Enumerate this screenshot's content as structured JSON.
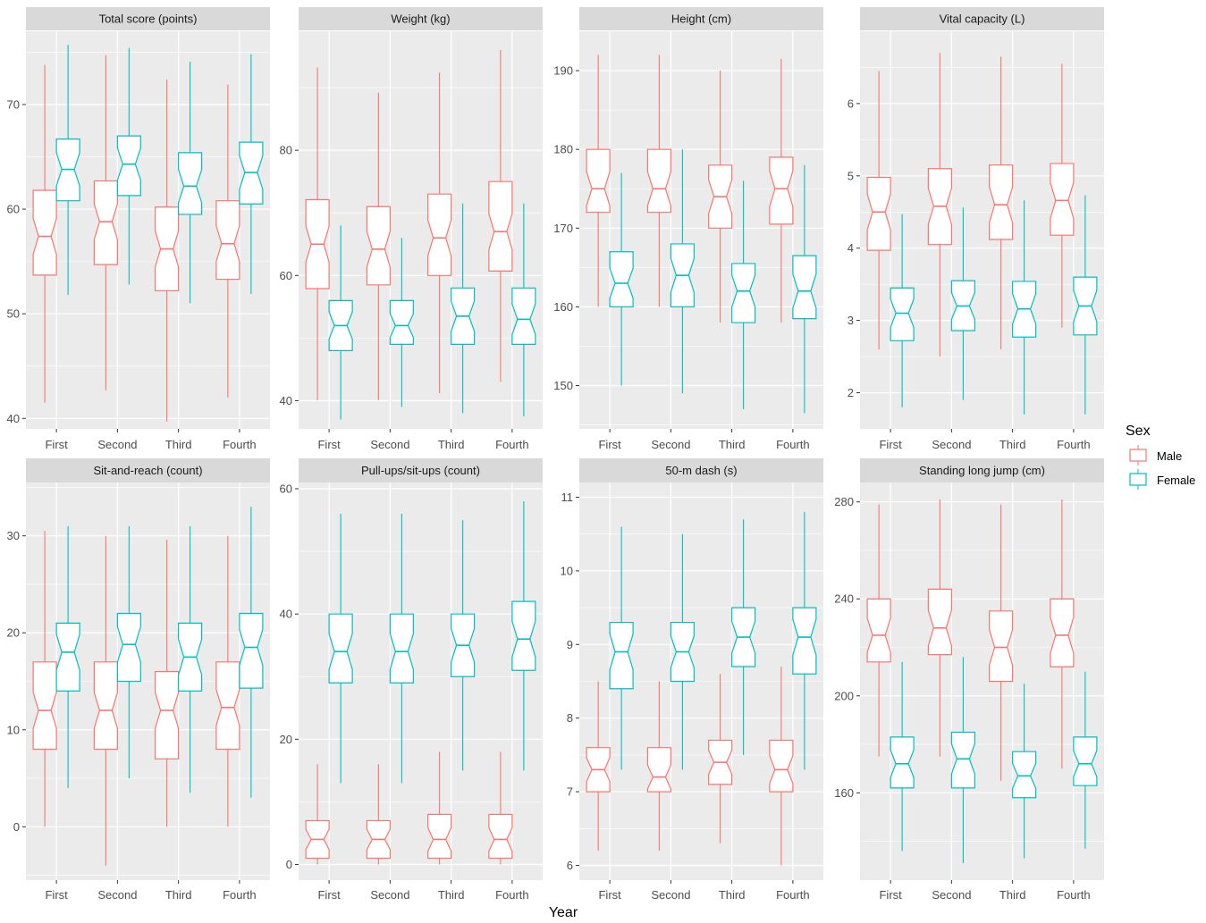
{
  "colors": {
    "male": "#F8766D",
    "female": "#00BFC4",
    "panel_bg": "#EBEBEB",
    "strip_bg": "#D9D9D9",
    "grid": "#FFFFFF"
  },
  "xlabel": "Year",
  "legend": {
    "title": "Sex",
    "entries": [
      "Male",
      "Female"
    ]
  },
  "chart_data": [
    {
      "type": "boxplot",
      "title": "Total score (points)",
      "categories": [
        "First",
        "Second",
        "Third",
        "Fourth"
      ],
      "ylim": [
        39,
        77
      ],
      "yticks": [
        40,
        50,
        60,
        70
      ],
      "series": [
        {
          "name": "Male",
          "boxes": [
            {
              "min": 41.5,
              "q1": 53.7,
              "median": 57.4,
              "q3": 61.8,
              "max": 73.8
            },
            {
              "min": 42.7,
              "q1": 54.7,
              "median": 58.8,
              "q3": 62.7,
              "max": 74.7
            },
            {
              "min": 39.7,
              "q1": 52.2,
              "median": 56.2,
              "q3": 60.2,
              "max": 72.4
            },
            {
              "min": 42.0,
              "q1": 53.3,
              "median": 56.7,
              "q3": 60.8,
              "max": 71.9
            }
          ]
        },
        {
          "name": "Female",
          "boxes": [
            {
              "min": 51.8,
              "q1": 60.8,
              "median": 63.8,
              "q3": 66.7,
              "max": 75.7
            },
            {
              "min": 52.8,
              "q1": 61.3,
              "median": 64.3,
              "q3": 67.0,
              "max": 75.4
            },
            {
              "min": 51.0,
              "q1": 59.5,
              "median": 62.2,
              "q3": 65.4,
              "max": 74.1
            },
            {
              "min": 51.9,
              "q1": 60.5,
              "median": 63.5,
              "q3": 66.4,
              "max": 74.8
            }
          ]
        }
      ]
    },
    {
      "type": "boxplot",
      "title": "Weight (kg)",
      "categories": [
        "First",
        "Second",
        "Third",
        "Fourth"
      ],
      "ylim": [
        35.5,
        99
      ],
      "yticks": [
        40,
        60,
        80
      ],
      "series": [
        {
          "name": "Male",
          "boxes": [
            {
              "min": 40.1,
              "q1": 57.9,
              "median": 65.0,
              "q3": 72.1,
              "max": 93.2
            },
            {
              "min": 40.1,
              "q1": 58.5,
              "median": 64.2,
              "q3": 71.0,
              "max": 89.2
            },
            {
              "min": 41.2,
              "q1": 60.0,
              "median": 66.0,
              "q3": 73.0,
              "max": 92.4
            },
            {
              "min": 43.0,
              "q1": 60.7,
              "median": 67.0,
              "q3": 75.0,
              "max": 96.0
            }
          ]
        },
        {
          "name": "Female",
          "boxes": [
            {
              "min": 37.0,
              "q1": 48.0,
              "median": 52.0,
              "q3": 56.0,
              "max": 68.0
            },
            {
              "min": 39.0,
              "q1": 49.0,
              "median": 52.0,
              "q3": 56.0,
              "max": 66.0
            },
            {
              "min": 38.0,
              "q1": 49.0,
              "median": 53.5,
              "q3": 58.0,
              "max": 71.5
            },
            {
              "min": 37.5,
              "q1": 49.0,
              "median": 53.0,
              "q3": 58.0,
              "max": 71.5
            }
          ]
        }
      ]
    },
    {
      "type": "boxplot",
      "title": "Height (cm)",
      "categories": [
        "First",
        "Second",
        "Third",
        "Fourth"
      ],
      "ylim": [
        144.5,
        195
      ],
      "yticks": [
        150,
        160,
        170,
        180,
        190
      ],
      "series": [
        {
          "name": "Male",
          "boxes": [
            {
              "min": 160.0,
              "q1": 172.0,
              "median": 175.0,
              "q3": 180.0,
              "max": 192.0
            },
            {
              "min": 160.0,
              "q1": 172.0,
              "median": 175.0,
              "q3": 180.0,
              "max": 192.0
            },
            {
              "min": 158.0,
              "q1": 170.0,
              "median": 174.0,
              "q3": 178.0,
              "max": 190.0
            },
            {
              "min": 158.0,
              "q1": 170.5,
              "median": 175.0,
              "q3": 179.0,
              "max": 191.5
            }
          ]
        },
        {
          "name": "Female",
          "boxes": [
            {
              "min": 150.0,
              "q1": 160.0,
              "median": 163.0,
              "q3": 167.0,
              "max": 177.0
            },
            {
              "min": 149.0,
              "q1": 160.0,
              "median": 164.0,
              "q3": 168.0,
              "max": 180.0
            },
            {
              "min": 147.0,
              "q1": 158.0,
              "median": 162.0,
              "q3": 165.5,
              "max": 176.0
            },
            {
              "min": 146.5,
              "q1": 158.5,
              "median": 162.0,
              "q3": 166.5,
              "max": 178.0
            }
          ]
        }
      ]
    },
    {
      "type": "boxplot",
      "title": "Vital capacity (L)",
      "categories": [
        "First",
        "Second",
        "Third",
        "Fourth"
      ],
      "ylim": [
        1.5,
        7.0
      ],
      "yticks": [
        2,
        3,
        4,
        5,
        6
      ],
      "series": [
        {
          "name": "Male",
          "boxes": [
            {
              "min": 2.6,
              "q1": 3.97,
              "median": 4.5,
              "q3": 4.98,
              "max": 6.45
            },
            {
              "min": 2.5,
              "q1": 4.05,
              "median": 4.58,
              "q3": 5.1,
              "max": 6.7
            },
            {
              "min": 2.6,
              "q1": 4.12,
              "median": 4.6,
              "q3": 5.15,
              "max": 6.65
            },
            {
              "min": 2.9,
              "q1": 4.18,
              "median": 4.66,
              "q3": 5.17,
              "max": 6.55
            }
          ]
        },
        {
          "name": "Female",
          "boxes": [
            {
              "min": 1.8,
              "q1": 2.72,
              "median": 3.1,
              "q3": 3.45,
              "max": 4.47
            },
            {
              "min": 1.9,
              "q1": 2.86,
              "median": 3.2,
              "q3": 3.55,
              "max": 4.56
            },
            {
              "min": 1.7,
              "q1": 2.77,
              "median": 3.16,
              "q3": 3.54,
              "max": 4.66
            },
            {
              "min": 1.7,
              "q1": 2.8,
              "median": 3.2,
              "q3": 3.6,
              "max": 4.73
            }
          ]
        }
      ]
    },
    {
      "type": "boxplot",
      "title": "Sit-and-reach (count)",
      "categories": [
        "First",
        "Second",
        "Third",
        "Fourth"
      ],
      "ylim": [
        -5.5,
        35.5
      ],
      "yticks": [
        0,
        10,
        20,
        30
      ],
      "series": [
        {
          "name": "Male",
          "boxes": [
            {
              "min": 0.0,
              "q1": 8.0,
              "median": 12.0,
              "q3": 17.0,
              "max": 30.5
            },
            {
              "min": -4.0,
              "q1": 8.0,
              "median": 12.0,
              "q3": 17.0,
              "max": 30.0
            },
            {
              "min": 0.0,
              "q1": 7.0,
              "median": 12.0,
              "q3": 16.0,
              "max": 29.6
            },
            {
              "min": 0.0,
              "q1": 8.0,
              "median": 12.3,
              "q3": 17.0,
              "max": 30.0
            }
          ]
        },
        {
          "name": "Female",
          "boxes": [
            {
              "min": 4.0,
              "q1": 14.0,
              "median": 18.0,
              "q3": 21.0,
              "max": 31.0
            },
            {
              "min": 5.0,
              "q1": 15.0,
              "median": 18.8,
              "q3": 22.0,
              "max": 31.0
            },
            {
              "min": 3.5,
              "q1": 14.0,
              "median": 17.5,
              "q3": 21.0,
              "max": 31.0
            },
            {
              "min": 3.0,
              "q1": 14.3,
              "median": 18.5,
              "q3": 22.0,
              "max": 33.0
            }
          ]
        }
      ]
    },
    {
      "type": "boxplot",
      "title": "Pull-ups/sit-ups (count)",
      "categories": [
        "First",
        "Second",
        "Third",
        "Fourth"
      ],
      "ylim": [
        -2.5,
        61
      ],
      "yticks": [
        0,
        20,
        40,
        60
      ],
      "series": [
        {
          "name": "Male",
          "boxes": [
            {
              "min": 0.0,
              "q1": 1.0,
              "median": 4.0,
              "q3": 7.0,
              "max": 16.0
            },
            {
              "min": 0.0,
              "q1": 1.0,
              "median": 4.0,
              "q3": 7.0,
              "max": 16.0
            },
            {
              "min": 0.0,
              "q1": 1.0,
              "median": 4.0,
              "q3": 8.0,
              "max": 18.0
            },
            {
              "min": 0.0,
              "q1": 1.0,
              "median": 4.0,
              "q3": 8.0,
              "max": 18.0
            }
          ]
        },
        {
          "name": "Female",
          "boxes": [
            {
              "min": 13.0,
              "q1": 29.0,
              "median": 34.0,
              "q3": 40.0,
              "max": 56.0
            },
            {
              "min": 13.0,
              "q1": 29.0,
              "median": 34.0,
              "q3": 40.0,
              "max": 56.0
            },
            {
              "min": 15.0,
              "q1": 30.0,
              "median": 35.0,
              "q3": 40.0,
              "max": 55.0
            },
            {
              "min": 15.0,
              "q1": 31.0,
              "median": 36.0,
              "q3": 42.0,
              "max": 58.0
            }
          ]
        }
      ]
    },
    {
      "type": "boxplot",
      "title": "50-m dash (s)",
      "categories": [
        "First",
        "Second",
        "Third",
        "Fourth"
      ],
      "ylim": [
        5.8,
        11.2
      ],
      "yticks": [
        6,
        7,
        8,
        9,
        10,
        11
      ],
      "series": [
        {
          "name": "Male",
          "boxes": [
            {
              "min": 6.2,
              "q1": 7.0,
              "median": 7.3,
              "q3": 7.6,
              "max": 8.5
            },
            {
              "min": 6.2,
              "q1": 7.0,
              "median": 7.2,
              "q3": 7.6,
              "max": 8.5
            },
            {
              "min": 6.3,
              "q1": 7.1,
              "median": 7.4,
              "q3": 7.7,
              "max": 8.6
            },
            {
              "min": 6.0,
              "q1": 7.0,
              "median": 7.3,
              "q3": 7.7,
              "max": 8.7
            }
          ]
        },
        {
          "name": "Female",
          "boxes": [
            {
              "min": 7.3,
              "q1": 8.4,
              "median": 8.9,
              "q3": 9.3,
              "max": 10.6
            },
            {
              "min": 7.3,
              "q1": 8.5,
              "median": 8.9,
              "q3": 9.3,
              "max": 10.5
            },
            {
              "min": 7.5,
              "q1": 8.7,
              "median": 9.1,
              "q3": 9.5,
              "max": 10.7
            },
            {
              "min": 7.3,
              "q1": 8.6,
              "median": 9.1,
              "q3": 9.5,
              "max": 10.8
            }
          ]
        }
      ]
    },
    {
      "type": "boxplot",
      "title": "Standing long jump (cm)",
      "categories": [
        "First",
        "Second",
        "Third",
        "Fourth"
      ],
      "ylim": [
        124,
        288
      ],
      "yticks": [
        160,
        200,
        240,
        280
      ],
      "series": [
        {
          "name": "Male",
          "boxes": [
            {
              "min": 175.0,
              "q1": 214.0,
              "median": 225.0,
              "q3": 240.0,
              "max": 279.0
            },
            {
              "min": 175.0,
              "q1": 217.0,
              "median": 228.0,
              "q3": 244.0,
              "max": 281.0
            },
            {
              "min": 165.0,
              "q1": 206.0,
              "median": 220.0,
              "q3": 235.0,
              "max": 279.0
            },
            {
              "min": 170.0,
              "q1": 212.0,
              "median": 225.0,
              "q3": 240.0,
              "max": 281.0
            }
          ]
        },
        {
          "name": "Female",
          "boxes": [
            {
              "min": 136.0,
              "q1": 162.0,
              "median": 172.0,
              "q3": 183.0,
              "max": 214.0
            },
            {
              "min": 131.0,
              "q1": 162.0,
              "median": 174.0,
              "q3": 185.0,
              "max": 216.0
            },
            {
              "min": 133.0,
              "q1": 158.0,
              "median": 167.0,
              "q3": 177.0,
              "max": 205.0
            },
            {
              "min": 137.0,
              "q1": 163.0,
              "median": 172.0,
              "q3": 183.0,
              "max": 210.0
            }
          ]
        }
      ]
    }
  ]
}
